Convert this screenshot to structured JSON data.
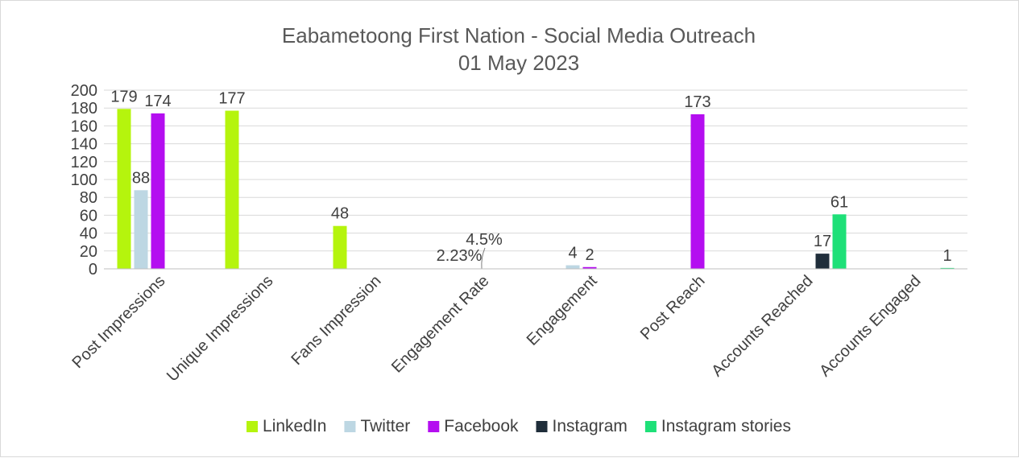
{
  "chart_data": {
    "type": "bar",
    "title": "Eabametoong First Nation - Social Media Outreach",
    "subtitle": "01 May 2023",
    "xlabel": "",
    "ylabel": "",
    "ylim": [
      0,
      200
    ],
    "ytick_step": 20,
    "grid": true,
    "legend_position": "bottom",
    "categories": [
      "Post Impressions",
      "Unique Impressions",
      "Fans Impression",
      "Engagement Rate",
      "Engagement",
      "Post Reach",
      "Accounts Reached",
      "Accounts Engaged"
    ],
    "series": [
      {
        "name": "LinkedIn",
        "color": "#b5f40d",
        "values": [
          179,
          177,
          48,
          null,
          null,
          null,
          null,
          null
        ],
        "labels": [
          "179",
          "177",
          "48",
          "",
          "",
          "",
          "",
          ""
        ]
      },
      {
        "name": "Twitter",
        "color": "#bdd7e3",
        "values": [
          88,
          null,
          null,
          null,
          4,
          null,
          null,
          null
        ],
        "labels": [
          "88",
          "",
          "",
          "",
          "4",
          "",
          "",
          ""
        ]
      },
      {
        "name": "Facebook",
        "color": "#b40ef0",
        "values": [
          174,
          null,
          null,
          null,
          2,
          173,
          null,
          null
        ],
        "labels": [
          "174",
          "",
          "",
          "",
          "2",
          "173",
          "",
          ""
        ]
      },
      {
        "name": "Instagram",
        "color": "#1f2d3a",
        "values": [
          null,
          null,
          null,
          null,
          null,
          null,
          17,
          null
        ],
        "labels": [
          "",
          "",
          "",
          "",
          "",
          "",
          "17",
          ""
        ]
      },
      {
        "name": "Instagram stories",
        "color": "#1ee078",
        "values": [
          null,
          null,
          null,
          null,
          null,
          null,
          61,
          1
        ],
        "labels": [
          "",
          "",
          "",
          "",
          "",
          "",
          "61",
          "1"
        ]
      }
    ],
    "annotations": [
      {
        "category": "Engagement Rate",
        "text": "2.23%"
      },
      {
        "category": "Engagement Rate",
        "text": "4.5%"
      }
    ]
  }
}
